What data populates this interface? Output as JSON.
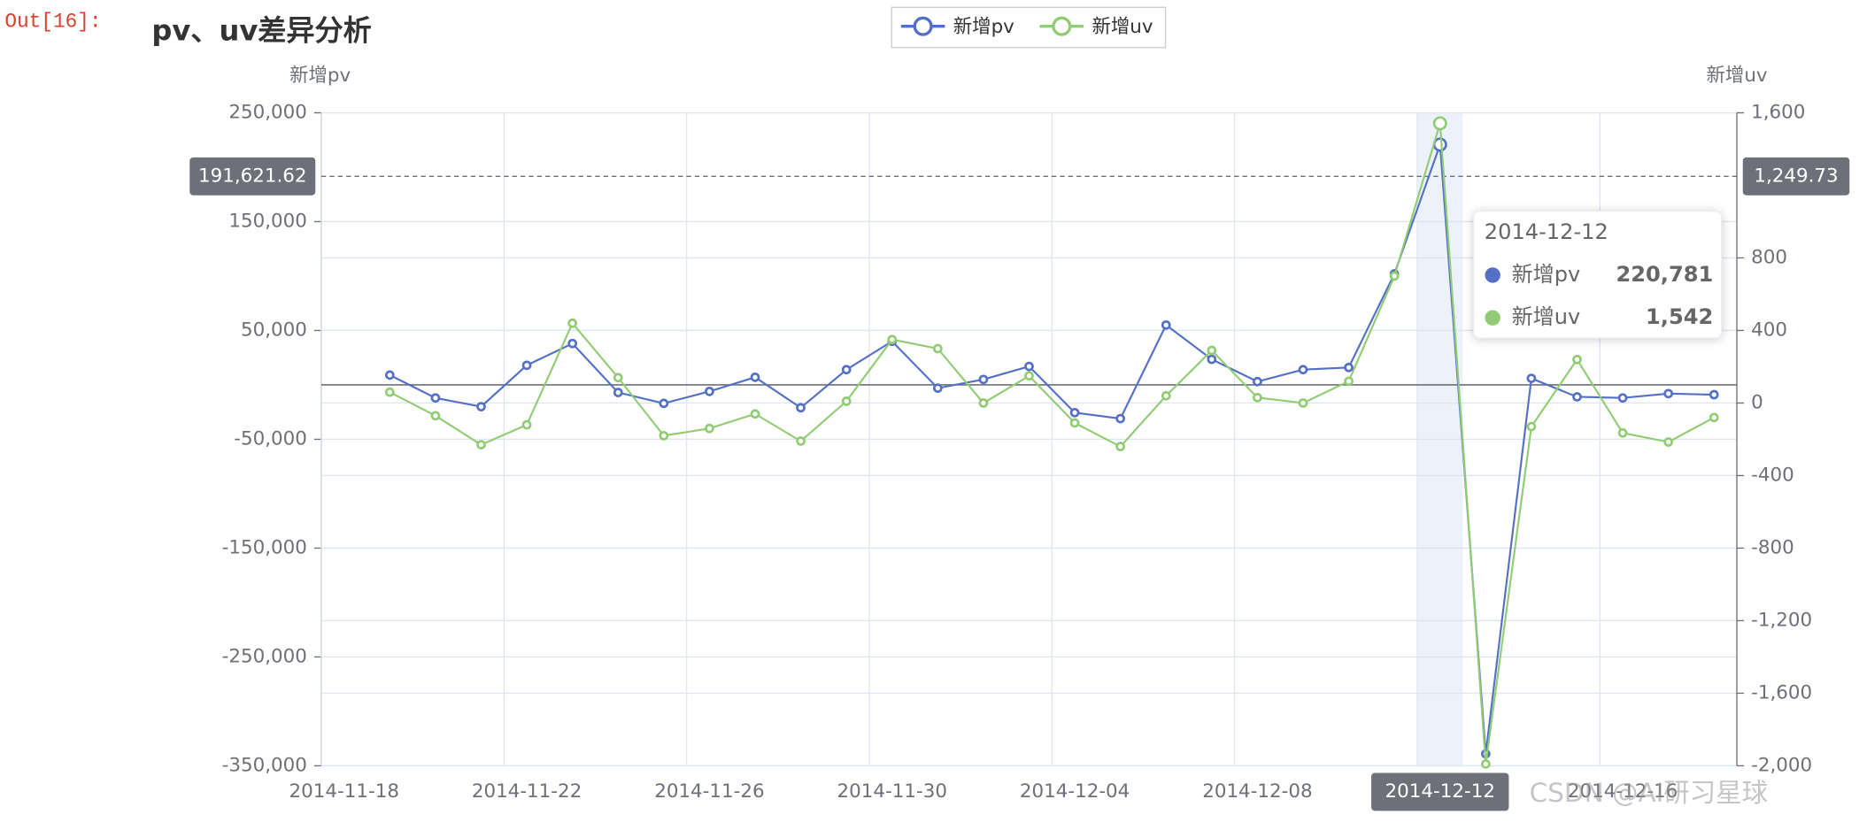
{
  "prompt": "Out[16]:",
  "watermark": "CSDN @AI研习星球",
  "chart_data": {
    "type": "line",
    "title": "pv、uv差异分析",
    "y_axis_label": "新增pv",
    "y2_axis_label": "新增uv",
    "categories": [
      "2014-11-18",
      null,
      null,
      null,
      "2014-11-22",
      null,
      null,
      null,
      "2014-11-26",
      null,
      null,
      null,
      "2014-11-30",
      null,
      null,
      null,
      "2014-12-04",
      null,
      null,
      null,
      "2014-12-08",
      null,
      null,
      null,
      "2014-12-12",
      null,
      null,
      null,
      "2014-12-16",
      null,
      null
    ],
    "series": [
      {
        "name": "新增pv",
        "color": "#5470c6",
        "values": [
          null,
          9000,
          -12000,
          -20000,
          18000,
          38000,
          -7000,
          -17000,
          -6000,
          7000,
          -21000,
          14000,
          40000,
          -3000,
          5000,
          17000,
          -25500,
          -31000,
          55000,
          23500,
          3000,
          14000,
          16000,
          102000,
          220781,
          -339000,
          6000,
          -11000,
          -12000,
          -8000,
          -9000
        ],
        "value_labels": [
          null,
          null,
          null,
          null,
          null,
          null,
          null,
          null,
          null,
          null,
          null,
          null,
          null,
          null,
          null,
          null,
          null,
          null,
          null,
          null,
          null,
          null,
          null,
          null,
          "220,781",
          null,
          null,
          null,
          null,
          null,
          null
        ]
      },
      {
        "name": "新增uv",
        "color": "#91cc75",
        "axis": "y2",
        "values": [
          null,
          60,
          -70,
          -230,
          -120,
          440,
          140,
          -180,
          -140,
          -60,
          -210,
          10,
          350,
          300,
          0,
          150,
          -110,
          -240,
          40,
          290,
          30,
          0,
          120,
          700,
          1542,
          -1990,
          -130,
          240,
          -165,
          -215,
          -80
        ],
        "value_labels": [
          null,
          null,
          null,
          null,
          null,
          null,
          null,
          null,
          null,
          null,
          null,
          null,
          null,
          null,
          null,
          null,
          null,
          null,
          null,
          null,
          null,
          null,
          null,
          null,
          "1,542",
          null,
          null,
          null,
          null,
          null,
          null
        ]
      }
    ],
    "ylim": [
      -350000,
      250000
    ],
    "yticks": [
      {
        "value": 250000,
        "label": "250,000"
      },
      {
        "value": 150000,
        "label": "150,000"
      },
      {
        "value": 50000,
        "label": "50,000"
      },
      {
        "value": -50000,
        "label": "-50,000"
      },
      {
        "value": -150000,
        "label": "-150,000"
      },
      {
        "value": -250000,
        "label": "-250,000"
      },
      {
        "value": -350000,
        "label": "-350,000"
      }
    ],
    "y2lim": [
      -2000,
      1600
    ],
    "y2ticks": [
      {
        "value": 1600,
        "label": "1,600"
      },
      800,
      400,
      0,
      -400,
      -800,
      {
        "value": -1200,
        "label": "-1,200"
      },
      {
        "value": -1600,
        "label": "-1,600"
      },
      {
        "value": -2000,
        "label": "-2,000"
      }
    ],
    "axis_pointer": {
      "y": {
        "value": 191621.62,
        "label": "191,621.62"
      },
      "y2": {
        "value": 1249.73,
        "label": "1,249.73"
      }
    },
    "grid": true,
    "legend_position": "top"
  }
}
